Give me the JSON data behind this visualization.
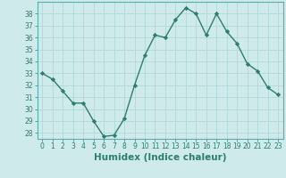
{
  "x": [
    0,
    1,
    2,
    3,
    4,
    5,
    6,
    7,
    8,
    9,
    10,
    11,
    12,
    13,
    14,
    15,
    16,
    17,
    18,
    19,
    20,
    21,
    22,
    23
  ],
  "y": [
    33,
    32.5,
    31.5,
    30.5,
    30.5,
    29,
    27.7,
    27.8,
    29.2,
    32,
    34.5,
    36.2,
    36,
    37.5,
    38.5,
    38,
    36.2,
    38,
    36.5,
    35.5,
    33.8,
    33.2,
    31.8,
    31.2
  ],
  "line_color": "#2e7d6e",
  "marker": "D",
  "marker_size": 2.2,
  "bg_color": "#ceeaea",
  "grid_color": "#b0d8d8",
  "xlabel": "Humidex (Indice chaleur)",
  "ylim": [
    27.5,
    39.0
  ],
  "xlim": [
    -0.5,
    23.5
  ],
  "yticks": [
    28,
    29,
    30,
    31,
    32,
    33,
    34,
    35,
    36,
    37,
    38
  ],
  "xticks": [
    0,
    1,
    2,
    3,
    4,
    5,
    6,
    7,
    8,
    9,
    10,
    11,
    12,
    13,
    14,
    15,
    16,
    17,
    18,
    19,
    20,
    21,
    22,
    23
  ],
  "tick_fontsize": 5.5,
  "xlabel_fontsize": 7.5,
  "linewidth": 1.0
}
